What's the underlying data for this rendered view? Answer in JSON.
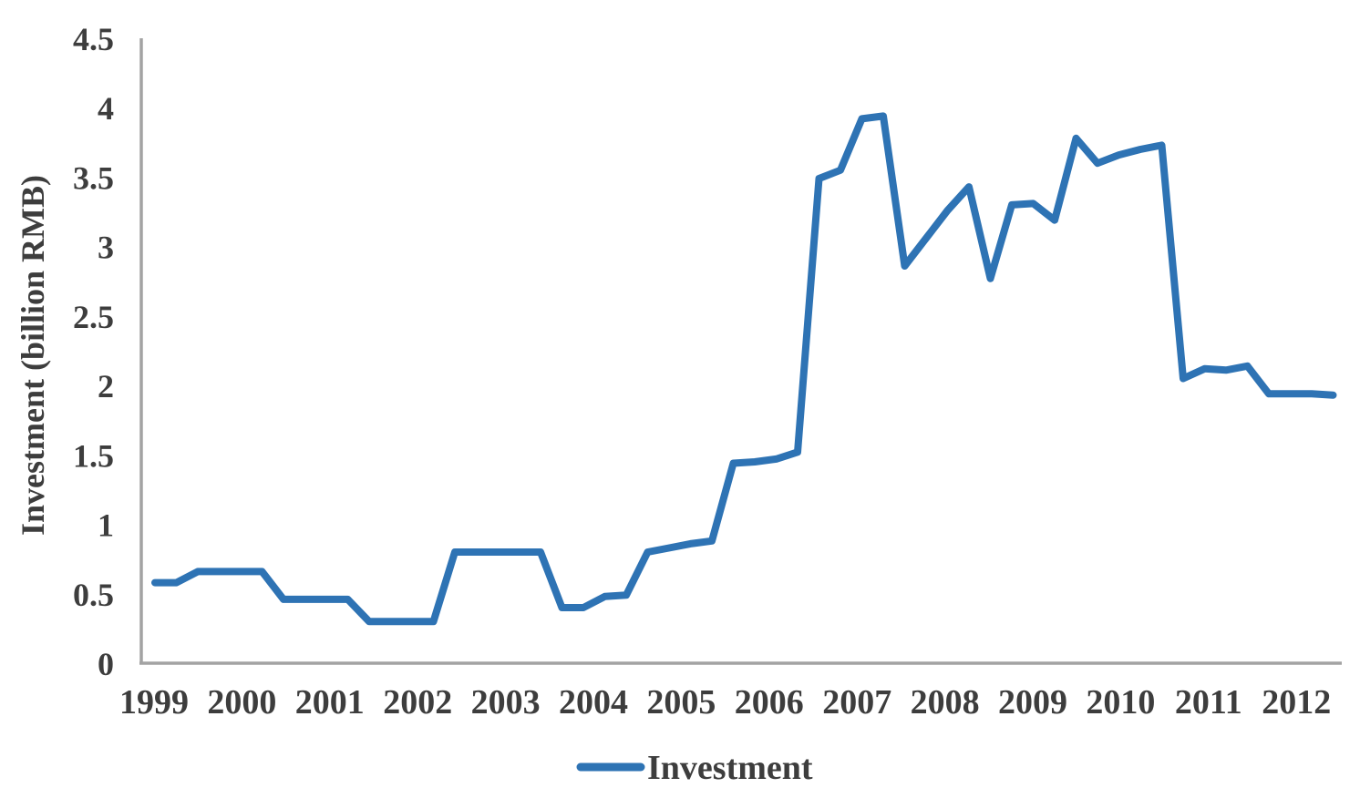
{
  "chart_data": {
    "type": "line",
    "title": "",
    "xlabel": "",
    "ylabel": "Investment (billion RMB)",
    "ylim": [
      0,
      4.5
    ],
    "ytick_step": 0.5,
    "ytick_labels": [
      "0",
      "0.5",
      "1",
      "1.5",
      "2",
      "2.5",
      "3",
      "3.5",
      "4",
      "4.5"
    ],
    "x_labels": [
      "1999",
      "2000",
      "2001",
      "2002",
      "2003",
      "2004",
      "2005",
      "2006",
      "2007",
      "2008",
      "2009",
      "2010",
      "2011",
      "2012"
    ],
    "points_per_year": 4,
    "x_unit": "quarterly",
    "grid": false,
    "legend_position": "bottom-center",
    "series": [
      {
        "name": "Investment",
        "color": "#2e73b4",
        "values": [
          0.58,
          0.58,
          0.66,
          0.66,
          0.66,
          0.66,
          0.46,
          0.46,
          0.46,
          0.46,
          0.3,
          0.3,
          0.3,
          0.3,
          0.8,
          0.8,
          0.8,
          0.8,
          0.8,
          0.4,
          0.4,
          0.48,
          0.49,
          0.8,
          0.83,
          0.86,
          0.88,
          1.44,
          1.45,
          1.47,
          1.52,
          3.49,
          3.55,
          3.92,
          3.94,
          2.86,
          3.06,
          3.26,
          3.43,
          2.77,
          3.3,
          3.31,
          3.19,
          3.78,
          3.6,
          3.66,
          3.7,
          3.73,
          2.05,
          2.12,
          2.11,
          2.14,
          1.94,
          1.94,
          1.94,
          1.93
        ]
      }
    ]
  },
  "colors": {
    "background": "#ffffff",
    "line": "#2e73b4",
    "axis": "#a3a3a3",
    "text": "#3d3d3d"
  }
}
